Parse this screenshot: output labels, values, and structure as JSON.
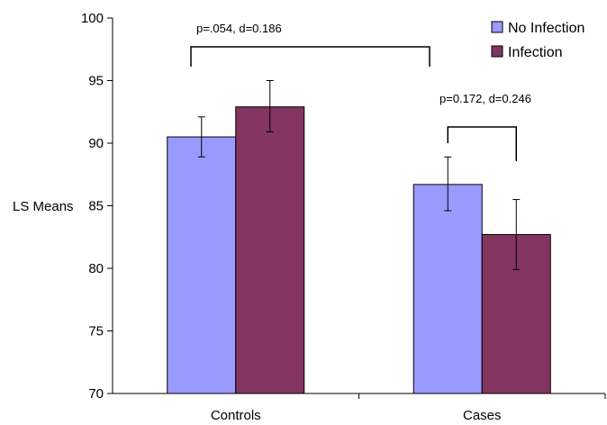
{
  "chart_data": {
    "type": "bar",
    "categories": [
      "Controls",
      "Cases"
    ],
    "series": [
      {
        "name": "No Infection",
        "values": [
          90.5,
          86.7
        ],
        "error_low": [
          88.9,
          84.6
        ],
        "error_high": [
          92.1,
          88.9
        ],
        "color": "#9999ff"
      },
      {
        "name": "Infection",
        "values": [
          92.9,
          82.7
        ],
        "error_low": [
          90.9,
          79.9
        ],
        "error_high": [
          95.0,
          85.5
        ],
        "color": "#833560"
      }
    ],
    "title": "",
    "xlabel": "",
    "ylabel": "LS Means",
    "ylim": [
      70,
      100
    ],
    "yticks": [
      70,
      75,
      80,
      85,
      90,
      95,
      100
    ],
    "grid": false,
    "legend_position": "top-right",
    "annotations": [
      {
        "text": "p=.054, d=0.186",
        "compares": "Controls vs Cases"
      },
      {
        "text": "p=0.172, d=0.246",
        "compares": "Cases: No Infection vs Infection"
      }
    ]
  }
}
